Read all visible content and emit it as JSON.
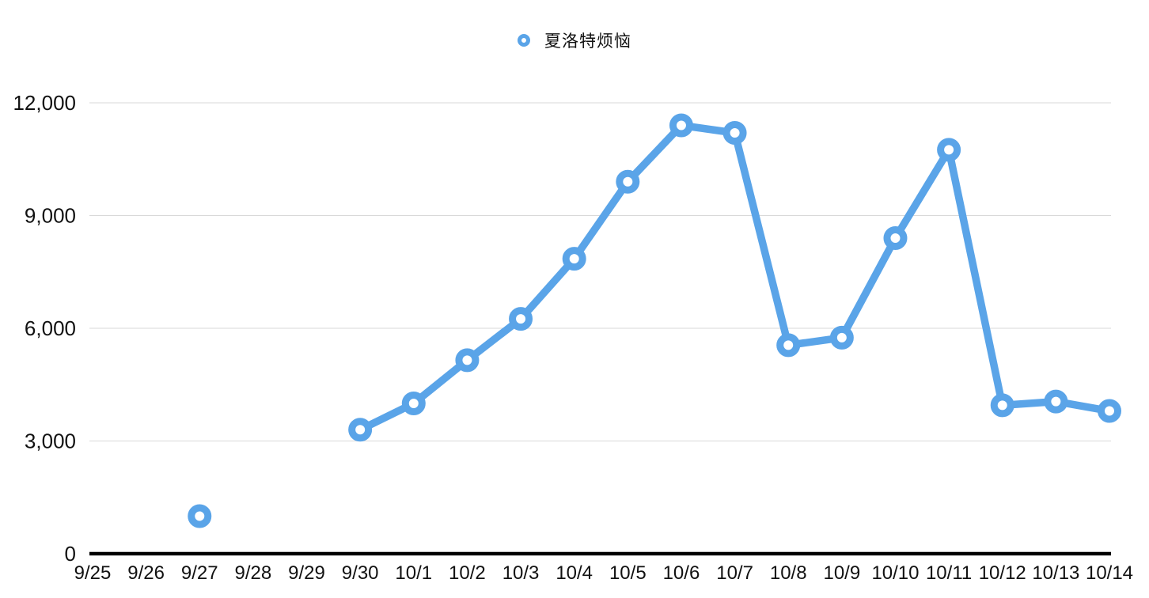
{
  "legend": {
    "label": "夏洛特烦恼"
  },
  "colors": {
    "series": "#5AA4E8",
    "grid": "#D9D9D9",
    "axis": "#000000",
    "text": "#111111",
    "marker_fill": "#FFFFFF"
  },
  "chart_data": {
    "type": "line",
    "title": "",
    "xlabel": "",
    "ylabel": "",
    "categories": [
      "9/25",
      "9/26",
      "9/27",
      "9/28",
      "9/29",
      "9/30",
      "10/1",
      "10/2",
      "10/3",
      "10/4",
      "10/5",
      "10/6",
      "10/7",
      "10/8",
      "10/9",
      "10/10",
      "10/11",
      "10/12",
      "10/13",
      "10/14"
    ],
    "series": [
      {
        "name": "夏洛特烦恼",
        "values": [
          null,
          null,
          1000,
          null,
          null,
          3300,
          4000,
          5150,
          6250,
          7850,
          9900,
          11400,
          11200,
          5550,
          5750,
          8400,
          10750,
          3950,
          4050,
          3800
        ]
      }
    ],
    "ylim": [
      0,
      12000
    ],
    "yticks": [
      0,
      3000,
      6000,
      9000,
      12000
    ],
    "ytick_labels": [
      "0",
      "3,000",
      "6,000",
      "9,000",
      "12,000"
    ],
    "grid": true,
    "legend_position": "top-center",
    "marker": "open-circle"
  }
}
